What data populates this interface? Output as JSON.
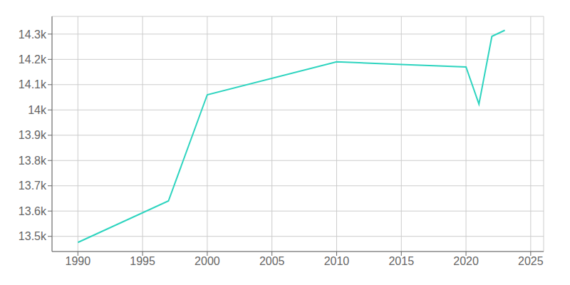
{
  "chart_data": {
    "type": "line",
    "x": [
      1990,
      1997,
      2000,
      2010,
      2015,
      2020,
      2021,
      2022,
      2023
    ],
    "values": [
      13476,
      13640,
      14060,
      14190,
      14180,
      14170,
      14023,
      14291,
      14315
    ],
    "color": "#2dd4bf",
    "xlim": [
      1988,
      2026
    ],
    "ylim": [
      13440,
      14370
    ],
    "xticks": [
      1990,
      1995,
      2000,
      2005,
      2010,
      2015,
      2020,
      2025
    ],
    "yticks": [
      {
        "value": 13500,
        "label": "13.5k"
      },
      {
        "value": 13600,
        "label": "13.6k"
      },
      {
        "value": 13700,
        "label": "13.7k"
      },
      {
        "value": 13800,
        "label": "13.8k"
      },
      {
        "value": 13900,
        "label": "13.9k"
      },
      {
        "value": 14000,
        "label": "14k"
      },
      {
        "value": 14100,
        "label": "14.1k"
      },
      {
        "value": 14200,
        "label": "14.2k"
      },
      {
        "value": 14300,
        "label": "14.3k"
      }
    ],
    "grid": true
  }
}
